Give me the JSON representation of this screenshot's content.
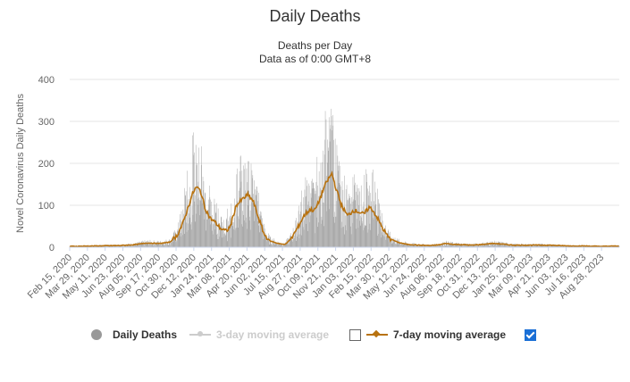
{
  "header": {
    "title": "Daily Deaths",
    "subtitle_line1": "Deaths per Day",
    "subtitle_line2": "Data as of 0:00 GMT+8"
  },
  "legend": {
    "items": [
      {
        "label": "Daily Deaths",
        "color": "#999999",
        "visible": true
      },
      {
        "label": "3-day moving average",
        "color": "#cccccc",
        "visible": false
      },
      {
        "label": "7-day moving average",
        "color": "#b8720f",
        "visible": true
      }
    ]
  },
  "chart_data": {
    "type": "bar",
    "title": "Daily Deaths",
    "subtitle": "Deaths per Day / Data as of 0:00 GMT+8",
    "ylabel": "Novel Coronavirus Daily Deaths",
    "xlabel": "",
    "ylim": [
      0,
      400
    ],
    "yticks": [
      0,
      100,
      200,
      300,
      400
    ],
    "x_start": "2020-02-15",
    "x_end": "2023-10-10",
    "xticks": [
      "Feb 15, 2020",
      "Mar 29, 2020",
      "May 11, 2020",
      "Jun 23, 2020",
      "Aug 05, 2020",
      "Sep 17, 2020",
      "Oct 30, 2020",
      "Dec 12, 2020",
      "Jan 24, 2021",
      "Mar 08, 2021",
      "Apr 20, 2021",
      "Jun 02, 2021",
      "Jul 15, 2021",
      "Aug 27, 2021",
      "Oct 09, 2021",
      "Nov 21, 2021",
      "Jan 03, 2022",
      "Feb 15, 2022",
      "Mar 30, 2022",
      "May 12, 2022",
      "Jun 24, 2022",
      "Aug 06, 2022",
      "Sep 18, 2022",
      "Oct 31, 2022",
      "Dec 13, 2022",
      "Jan 25, 2023",
      "Mar 09, 2023",
      "Apr 21, 2023",
      "Jun 03, 2023",
      "Jul 16, 2023",
      "Aug 28, 2023"
    ],
    "grid": "horizontal",
    "legend_position": "bottom",
    "series": [
      {
        "name": "7-day moving average",
        "type": "line",
        "color": "#b8720f",
        "points": [
          [
            "2020-02-15",
            2
          ],
          [
            "2020-04-15",
            3
          ],
          [
            "2020-06-15",
            4
          ],
          [
            "2020-07-20",
            6
          ],
          [
            "2020-08-20",
            10
          ],
          [
            "2020-09-20",
            9
          ],
          [
            "2020-10-15",
            12
          ],
          [
            "2020-11-01",
            28
          ],
          [
            "2020-11-15",
            55
          ],
          [
            "2020-11-28",
            95
          ],
          [
            "2020-12-10",
            130
          ],
          [
            "2020-12-18",
            143
          ],
          [
            "2020-12-28",
            135
          ],
          [
            "2021-01-08",
            95
          ],
          [
            "2021-01-20",
            70
          ],
          [
            "2021-02-01",
            60
          ],
          [
            "2021-02-15",
            45
          ],
          [
            "2021-02-28",
            38
          ],
          [
            "2021-03-10",
            48
          ],
          [
            "2021-03-25",
            100
          ],
          [
            "2021-04-10",
            115
          ],
          [
            "2021-04-22",
            125
          ],
          [
            "2021-05-05",
            110
          ],
          [
            "2021-05-18",
            70
          ],
          [
            "2021-06-01",
            30
          ],
          [
            "2021-06-15",
            15
          ],
          [
            "2021-07-01",
            10
          ],
          [
            "2021-07-20",
            6
          ],
          [
            "2021-08-05",
            20
          ],
          [
            "2021-08-20",
            45
          ],
          [
            "2021-09-05",
            75
          ],
          [
            "2021-09-20",
            90
          ],
          [
            "2021-10-01",
            88
          ],
          [
            "2021-10-10",
            105
          ],
          [
            "2021-10-25",
            145
          ],
          [
            "2021-11-05",
            165
          ],
          [
            "2021-11-12",
            175
          ],
          [
            "2021-11-22",
            140
          ],
          [
            "2021-12-05",
            100
          ],
          [
            "2021-12-20",
            75
          ],
          [
            "2022-01-03",
            88
          ],
          [
            "2022-01-15",
            85
          ],
          [
            "2022-01-28",
            78
          ],
          [
            "2022-02-10",
            95
          ],
          [
            "2022-02-18",
            90
          ],
          [
            "2022-03-01",
            72
          ],
          [
            "2022-03-15",
            45
          ],
          [
            "2022-03-30",
            22
          ],
          [
            "2022-04-20",
            12
          ],
          [
            "2022-05-12",
            7
          ],
          [
            "2022-06-10",
            5
          ],
          [
            "2022-07-10",
            4
          ],
          [
            "2022-08-01",
            6
          ],
          [
            "2022-08-15",
            9
          ],
          [
            "2022-09-01",
            7
          ],
          [
            "2022-09-25",
            6
          ],
          [
            "2022-10-20",
            5
          ],
          [
            "2022-11-15",
            7
          ],
          [
            "2022-12-05",
            9
          ],
          [
            "2022-12-25",
            8
          ],
          [
            "2023-01-25",
            5
          ],
          [
            "2023-03-09",
            5
          ],
          [
            "2023-04-21",
            5
          ],
          [
            "2023-05-15",
            4
          ],
          [
            "2023-06-15",
            3
          ],
          [
            "2023-07-15",
            3
          ],
          [
            "2023-08-28",
            2
          ],
          [
            "2023-10-10",
            3
          ]
        ]
      },
      {
        "name": "Daily Deaths",
        "type": "bar",
        "color": "#999999",
        "peaks": [
          [
            "2020-12-12",
            220
          ],
          [
            "2020-12-20",
            200
          ],
          [
            "2021-04-15",
            200
          ],
          [
            "2021-04-25",
            205
          ],
          [
            "2021-11-10",
            330
          ],
          [
            "2021-11-05",
            310
          ],
          [
            "2021-11-15",
            290
          ],
          [
            "2022-02-20",
            185
          ],
          [
            "2022-02-05",
            175
          ]
        ]
      }
    ]
  }
}
